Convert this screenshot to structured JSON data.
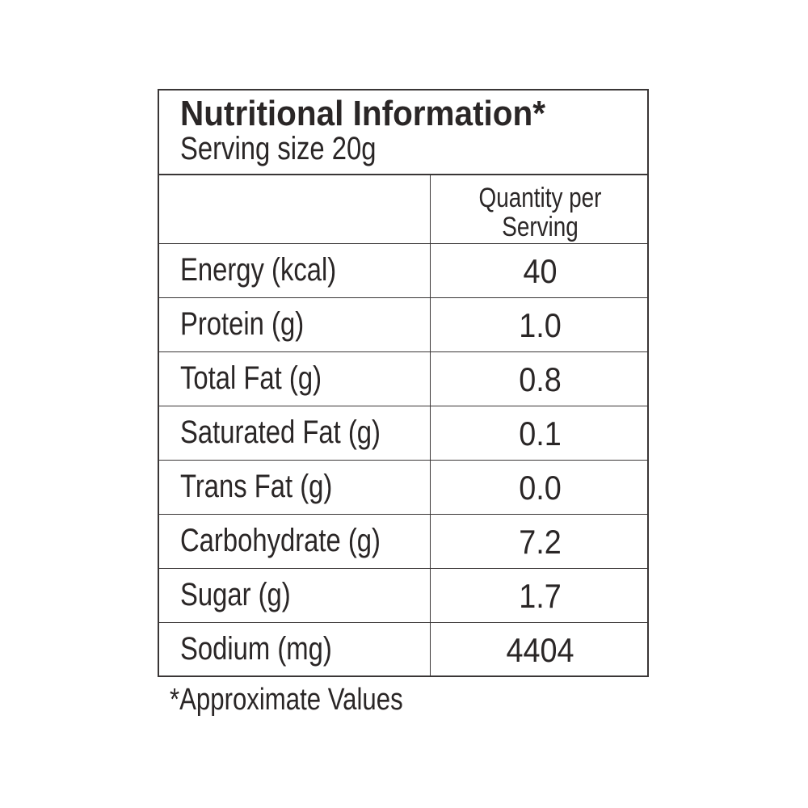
{
  "header": {
    "title": "Nutritional Information*",
    "subtitle": "Serving size 20g"
  },
  "table": {
    "column_header": "Quantity per Serving",
    "rows": [
      [
        "Energy (kcal)",
        "40"
      ],
      [
        "Protein (g)",
        "1.0"
      ],
      [
        "Total Fat (g)",
        "0.8"
      ],
      [
        "Saturated Fat (g)",
        "0.1"
      ],
      [
        "Trans Fat (g)",
        "0.0"
      ],
      [
        "Carbohydrate (g)",
        "7.2"
      ],
      [
        "Sugar (g)",
        "1.7"
      ],
      [
        "Sodium (mg)",
        "4404"
      ]
    ]
  },
  "footnote": "*Approximate Values"
}
